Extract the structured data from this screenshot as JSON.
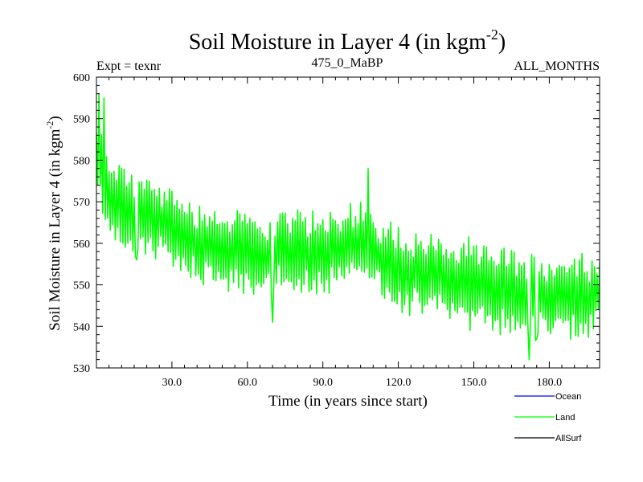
{
  "chart_data": {
    "type": "line",
    "title_main": "Soil Moisture in Layer 4 (in kgm",
    "title_sup": "-2",
    "title_close": ")",
    "subtitle_left": "Expt = texnr",
    "subtitle_center": "475_0_MaBP",
    "subtitle_right": "ALL_MONTHS",
    "xlabel": "Time (in years since start)",
    "ylabel_main": "Soil Moisture in Layer 4 (in kgm",
    "ylabel_sup": "-2",
    "ylabel_close": ")",
    "xlim": [
      0,
      200
    ],
    "ylim": [
      530,
      600
    ],
    "x_ticks": [
      30,
      60,
      90,
      120,
      150,
      180
    ],
    "x_tick_labels": [
      "30.0",
      "60.0",
      "90.0",
      "120.0",
      "150.0",
      "180.0"
    ],
    "y_ticks": [
      530,
      540,
      550,
      560,
      570,
      580,
      590,
      600
    ],
    "y_tick_labels": [
      "530",
      "540",
      "550",
      "560",
      "570",
      "580",
      "590",
      "600"
    ],
    "legend_position": "bottom-right-outside",
    "series": [
      {
        "name": "Ocean",
        "color": "#0000ff",
        "values": []
      },
      {
        "name": "Land",
        "color": "#00ff00",
        "trend_points": [
          [
            0,
            580
          ],
          [
            5,
            572
          ],
          [
            15,
            567
          ],
          [
            25,
            565
          ],
          [
            40,
            560
          ],
          [
            60,
            557
          ],
          [
            90,
            558
          ],
          [
            105,
            560
          ],
          [
            120,
            554
          ],
          [
            150,
            550
          ],
          [
            180,
            547
          ],
          [
            200,
            548
          ]
        ],
        "annual_amplitude": 9,
        "x_step": 0.5,
        "extremes": [
          [
            1,
            596
          ],
          [
            3,
            595
          ],
          [
            172,
            532
          ],
          [
            16,
            556
          ],
          [
            70,
            541
          ],
          [
            108,
            578
          ],
          [
            175,
            537
          ]
        ]
      },
      {
        "name": "AllSurf",
        "color": "#000000",
        "values": []
      }
    ]
  }
}
